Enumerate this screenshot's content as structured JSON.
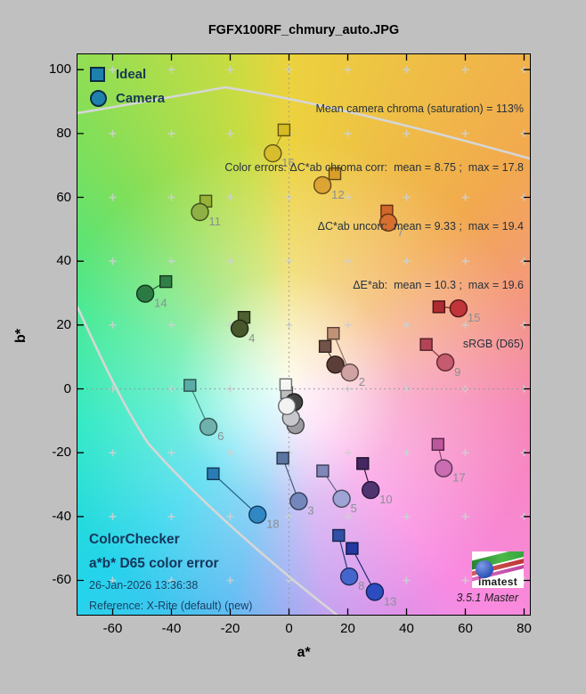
{
  "title": "FGFX100RF_chmury_auto.JPG",
  "legend": {
    "ideal": "Ideal",
    "camera": "Camera",
    "marker_color": "#1e81ad"
  },
  "stats": [
    "Mean camera chroma (saturation) = 113%",
    "Color errors: ΔC*ab chroma corr:  mean = 8.75 ;  max = 17.8",
    "ΔC*ab uncorr:  mean = 9.33 ;  max = 19.4",
    "ΔE*ab:  mean = 10.3 ;  max = 19.6",
    "sRGB (D65)"
  ],
  "footer": {
    "line1": "ColorChecker",
    "line2": "a*b* D65 color error",
    "line3": "26-Jan-2026 13:36:38",
    "line4": "Reference: X-Rite (default) (new)"
  },
  "branding": {
    "logo_text": "imatest",
    "version": "3.5.1  Master"
  },
  "axes": {
    "xlabel": "a*",
    "ylabel": "b*",
    "x_ticks": [
      -60,
      -40,
      -20,
      0,
      20,
      40,
      60,
      80
    ],
    "y_ticks": [
      100,
      80,
      60,
      40,
      20,
      0,
      -20,
      -40,
      -60
    ]
  },
  "colors": {
    "figure_bg": "#c0c0c0",
    "point_label": "#888f92",
    "gamut_line": "#d6d6d6"
  },
  "chart_data": {
    "type": "scatter",
    "title": "FGFX100RF_chmury_auto.JPG",
    "series": [
      "Ideal",
      "Camera"
    ],
    "xlabel": "a*",
    "ylabel": "b*",
    "xlim": [
      -72,
      82
    ],
    "ylim": [
      -70.5,
      104.8
    ],
    "grid_step": 20,
    "legend_position": "top-left",
    "patches": [
      {
        "id": 1,
        "ideal": [
          12.3,
          13.3
        ],
        "camera": [
          15.8,
          7.6
        ],
        "ideal_color": "#73524a",
        "camera_color": "#5c3e38",
        "show_label": false
      },
      {
        "id": 2,
        "ideal": [
          15.1,
          17.4
        ],
        "camera": [
          20.7,
          5.1
        ],
        "ideal_color": "#c29276",
        "camera_color": "#d0a2a2",
        "show_label": true
      },
      {
        "id": 3,
        "ideal": [
          -2.1,
          -21.7
        ],
        "camera": [
          3.3,
          -35.2
        ],
        "ideal_color": "#5c76a2",
        "camera_color": "#7487bc",
        "show_label": true
      },
      {
        "id": 4,
        "ideal": [
          -15.3,
          22.4
        ],
        "camera": [
          -16.8,
          18.9
        ],
        "ideal_color": "#4d6030",
        "camera_color": "#46582c",
        "show_label": true
      },
      {
        "id": 5,
        "ideal": [
          11.5,
          -25.7
        ],
        "camera": [
          17.9,
          -34.4
        ],
        "ideal_color": "#8087b8",
        "camera_color": "#9fa4d4",
        "show_label": true
      },
      {
        "id": 6,
        "ideal": [
          -33.7,
          1.1
        ],
        "camera": [
          -27.4,
          -11.9
        ],
        "ideal_color": "#5aada6",
        "camera_color": "#6fb1ac",
        "show_label": true
      },
      {
        "id": 7,
        "ideal": [
          33.3,
          55.7
        ],
        "camera": [
          33.8,
          52.1
        ],
        "ideal_color": "#d3662a",
        "camera_color": "#d66f30",
        "show_label": true
      },
      {
        "id": 8,
        "ideal": [
          16.9,
          -45.9
        ],
        "camera": [
          20.5,
          -58.8
        ],
        "ideal_color": "#3050a8",
        "camera_color": "#4466cc",
        "show_label": true
      },
      {
        "id": 9,
        "ideal": [
          46.7,
          13.9
        ],
        "camera": [
          53.2,
          8.3
        ],
        "ideal_color": "#b24456",
        "camera_color": "#c65a6e",
        "show_label": true
      },
      {
        "id": 10,
        "ideal": [
          25.1,
          -23.4
        ],
        "camera": [
          27.8,
          -31.7
        ],
        "ideal_color": "#452761",
        "camera_color": "#503472",
        "show_label": true
      },
      {
        "id": 11,
        "ideal": [
          -28.3,
          58.8
        ],
        "camera": [
          -30.3,
          55.4
        ],
        "ideal_color": "#97b237",
        "camera_color": "#8fb044",
        "show_label": true
      },
      {
        "id": 12,
        "ideal": [
          15.6,
          67.4
        ],
        "camera": [
          11.4,
          63.8
        ],
        "ideal_color": "#d89e28",
        "camera_color": "#dca434",
        "show_label": true
      },
      {
        "id": 13,
        "ideal": [
          21.5,
          -50.0
        ],
        "camera": [
          29.2,
          -63.6
        ],
        "ideal_color": "#2438a0",
        "camera_color": "#2c4cc0",
        "show_label": true
      },
      {
        "id": 14,
        "ideal": [
          -41.9,
          33.6
        ],
        "camera": [
          -48.9,
          29.8
        ],
        "ideal_color": "#317f46",
        "camera_color": "#2c7a43",
        "show_label": true
      },
      {
        "id": 15,
        "ideal": [
          51.0,
          25.7
        ],
        "camera": [
          57.7,
          25.2
        ],
        "ideal_color": "#ac2c32",
        "camera_color": "#c0343a",
        "show_label": true
      },
      {
        "id": 16,
        "ideal": [
          -1.7,
          81.1
        ],
        "camera": [
          -5.5,
          73.8
        ],
        "ideal_color": "#d6ba22",
        "camera_color": "#d8bd2e",
        "show_label": true
      },
      {
        "id": 17,
        "ideal": [
          50.7,
          -17.4
        ],
        "camera": [
          52.6,
          -24.9
        ],
        "ideal_color": "#bd579d",
        "camera_color": "#cb6db3",
        "show_label": true
      },
      {
        "id": 18,
        "ideal": [
          -25.8,
          -26.6
        ],
        "camera": [
          -10.7,
          -39.4
        ],
        "ideal_color": "#2a7cb4",
        "camera_color": "#2f87c4",
        "show_label": true
      }
    ],
    "neutral_ideals": [
      {
        "a": -0.8,
        "b": -1.2,
        "color": "#bdbdbd"
      },
      {
        "a": -1.1,
        "b": 1.3,
        "color": "#f5f5f5"
      }
    ],
    "neutral_cameras": [
      {
        "a": 1.7,
        "b": -4.2,
        "color": "#454545"
      },
      {
        "a": 2.2,
        "b": -11.4,
        "color": "#9b9ba1"
      },
      {
        "a": 0.7,
        "b": -9.1,
        "color": "#c7c7cd"
      },
      {
        "a": -0.7,
        "b": -5.4,
        "color": "#f2f2f2"
      }
    ]
  }
}
